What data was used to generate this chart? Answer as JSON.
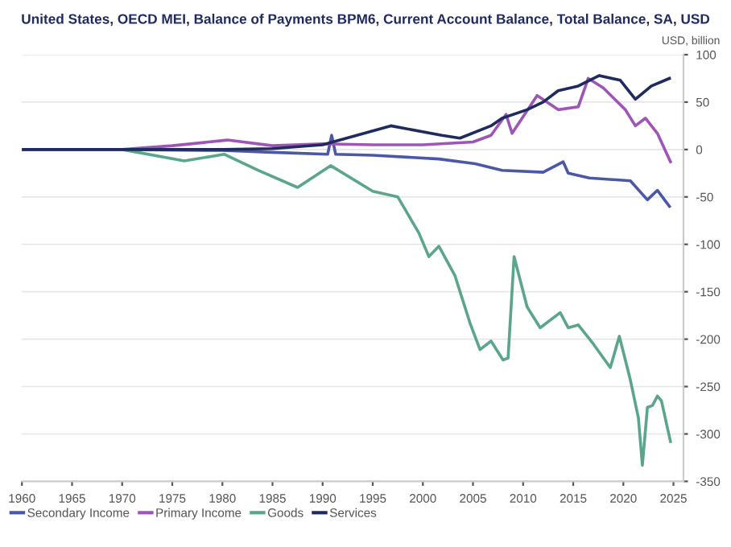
{
  "chart_data": {
    "type": "line",
    "title": "United States, OECD MEI, Balance of Payments BPM6, Current Account Balance, Total Balance, SA, USD",
    "annotations": [
      "USD, billion"
    ],
    "xlim": [
      1960,
      2026
    ],
    "xticks": [
      1960,
      1965,
      1970,
      1975,
      1980,
      1985,
      1990,
      1995,
      2000,
      2005,
      2010,
      2015,
      2020,
      2025
    ],
    "ylim": [
      -350,
      100
    ],
    "yticks": [
      -350,
      -300,
      -250,
      -200,
      -150,
      -100,
      -50,
      0,
      50,
      100
    ],
    "grid": "y",
    "legend": "bottom left",
    "line_style": "solid",
    "marker": "none",
    "series": [
      {
        "name": "Secondary Income",
        "color": "#4a58a6",
        "x": [
          1960,
          1970,
          1980,
          1985,
          1990.5,
          1990.9,
          1991.3,
          1995,
          2001.6,
          2005.2,
          2007.9,
          2012,
          2014,
          2014.5,
          2016.6,
          2020.7,
          2022.4,
          2023.4,
          2024.6
        ],
        "values": [
          0,
          0,
          -1,
          -3,
          -5,
          15,
          -5,
          -6,
          -10,
          -15,
          -22,
          -24,
          -13,
          -25,
          -30,
          -33,
          -53,
          -43,
          -60
        ]
      },
      {
        "name": "Primary Income",
        "color": "#9e55b5",
        "x": [
          1960,
          1970,
          1975,
          1980.5,
          1985,
          1990,
          1995,
          2000,
          2005,
          2006.8,
          2008.3,
          2008.9,
          2011.4,
          2013.5,
          2015.5,
          2016.5,
          2018,
          2020.2,
          2021.2,
          2022.2,
          2023.4,
          2024.7
        ],
        "values": [
          0,
          0,
          4,
          10,
          4,
          6,
          5,
          5,
          8,
          15,
          37,
          17,
          57,
          42,
          45,
          75,
          65,
          42,
          25,
          33,
          17,
          -13
        ]
      },
      {
        "name": "Goods",
        "color": "#5ba68a",
        "x": [
          1960,
          1970,
          1976.2,
          1980.2,
          1983.6,
          1987.5,
          1990.8,
          1995,
          1997.5,
          1999.6,
          2000.6,
          2001.6,
          2003.2,
          2004.7,
          2005.7,
          2006.8,
          2008,
          2008.5,
          2009.1,
          2010.4,
          2011.7,
          2013.7,
          2014.5,
          2015.5,
          2017,
          2018.7,
          2019.6,
          2020.7,
          2021.5,
          2021.9,
          2022.4,
          2022.9,
          2023.4,
          2023.8,
          2024.7
        ],
        "values": [
          0,
          0,
          -12,
          -5,
          -22,
          -40,
          -17,
          -44,
          -50,
          -88,
          -113,
          -102,
          -133,
          -183,
          -211,
          -202,
          -222,
          -220,
          -113,
          -166,
          -188,
          -172,
          -188,
          -185,
          -205,
          -230,
          -197,
          -243,
          -283,
          -333,
          -272,
          -270,
          -260,
          -265,
          -308
        ]
      },
      {
        "name": "Services",
        "color": "#1f2b5e",
        "x": [
          1960,
          1980,
          1985,
          1990,
          1996.8,
          2001.9,
          2003.7,
          2006.8,
          2007.9,
          2010.4,
          2012,
          2013.5,
          2015.5,
          2017.6,
          2019.7,
          2021.2,
          2022.8,
          2024.6
        ],
        "values": [
          0,
          0,
          1,
          5,
          25,
          15,
          12,
          25,
          33,
          42,
          50,
          62,
          67,
          78,
          73,
          53,
          67,
          75
        ]
      }
    ]
  }
}
